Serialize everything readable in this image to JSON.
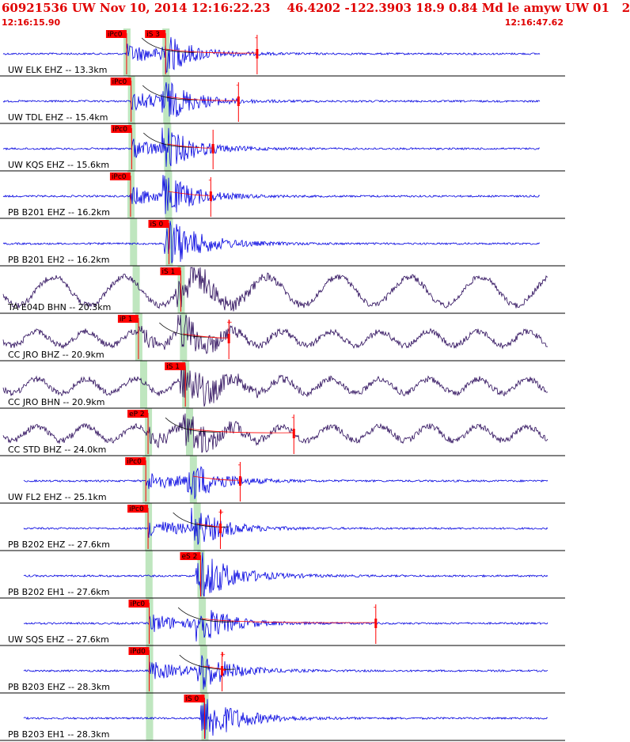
{
  "header": {
    "title": "60921536 UW Nov 10, 2014 12:16:22.23    46.4202 -122.3903 18.9 0.84 Md le amyw UW 01   2",
    "start_time": "12:16:15.90",
    "end_time": "12:16:47.62"
  },
  "colors": {
    "header_red": "#e00000",
    "trace_blue": "#0000e0",
    "trace_dark": "#2a0a5a",
    "pick_red": "#ff0000",
    "bar_green": "#bfe6bf"
  },
  "traces": [
    {
      "label": "UW ELK EHZ -- 13.3km",
      "color": "blue",
      "picks": [
        {
          "text": "iPc0",
          "t": 0.224
        },
        {
          "text": "iS 3",
          "t": 0.293
        }
      ],
      "amp_t": 0.455,
      "amp_sign": "-",
      "env": true,
      "tail": true,
      "noise": false
    },
    {
      "label": "UW TDL EHZ -- 15.4km",
      "color": "blue",
      "picks": [
        {
          "text": "iPc0",
          "t": 0.232
        }
      ],
      "amp_t": 0.422,
      "amp_sign": "-",
      "env": true,
      "tail": true,
      "noise": false
    },
    {
      "label": "UW KQS EHZ -- 15.6km",
      "color": "blue",
      "picks": [
        {
          "text": "iPc0",
          "t": 0.233
        }
      ],
      "amp_t": 0.377,
      "amp_sign": "",
      "env": true,
      "tail": true,
      "noise": false
    },
    {
      "label": "PB B201 EHZ -- 16.2km",
      "color": "blue",
      "picks": [
        {
          "text": "iPc0",
          "t": 0.231
        }
      ],
      "amp_t": 0.373,
      "amp_sign": "-",
      "env": false,
      "tail": true,
      "noise": false
    },
    {
      "label": "PB B201 EH2 -- 16.2km",
      "color": "blue",
      "picks": [
        {
          "text": "iS 0",
          "t": 0.299
        }
      ],
      "amp_t": null,
      "amp_sign": "",
      "env": false,
      "tail": false,
      "noise": false
    },
    {
      "label": "TA E04D BHN -- 20.3km",
      "color": "dark",
      "picks": [
        {
          "text": "iS 1",
          "t": 0.32
        }
      ],
      "amp_t": null,
      "amp_sign": "",
      "env": false,
      "tail": false,
      "noise": true
    },
    {
      "label": "CC JRO BHZ -- 20.9km",
      "color": "dark",
      "picks": [
        {
          "text": "iP 1",
          "t": 0.245
        }
      ],
      "amp_t": 0.405,
      "amp_sign": "+",
      "env": true,
      "tail": true,
      "noise": true
    },
    {
      "label": "CC JRO BHN -- 20.9km",
      "color": "dark",
      "picks": [
        {
          "text": "iS 1",
          "t": 0.328
        }
      ],
      "amp_t": null,
      "amp_sign": "",
      "env": false,
      "tail": false,
      "noise": true
    },
    {
      "label": "CC STD BHZ -- 24.0km",
      "color": "dark",
      "picks": [
        {
          "text": "eP 2",
          "t": 0.262
        }
      ],
      "amp_t": 0.52,
      "amp_sign": "-",
      "env": true,
      "tail": true,
      "noise": true
    },
    {
      "label": "UW FL2 EHZ -- 25.1km",
      "color": "blue",
      "picks": [
        {
          "text": "iPc0",
          "t": 0.258
        }
      ],
      "amp_t": 0.425,
      "amp_sign": "-",
      "env": false,
      "tail": true,
      "noise": false
    },
    {
      "label": "PB B202 EHZ -- 27.6km",
      "color": "blue",
      "picks": [
        {
          "text": "iPc0",
          "t": 0.262
        }
      ],
      "amp_t": 0.39,
      "amp_sign": "+",
      "env": true,
      "tail": true,
      "noise": false
    },
    {
      "label": "PB B202 EH1 -- 27.6km",
      "color": "blue",
      "picks": [
        {
          "text": "eS 2",
          "t": 0.355
        }
      ],
      "amp_t": null,
      "amp_sign": "",
      "env": false,
      "tail": false,
      "noise": false
    },
    {
      "label": "UW SQS EHZ -- 27.6km",
      "color": "blue",
      "picks": [
        {
          "text": "iPc0",
          "t": 0.264
        }
      ],
      "amp_t": 0.665,
      "amp_sign": "-",
      "env": true,
      "tail": true,
      "noise": false
    },
    {
      "label": "PB B203 EHZ -- 28.3km",
      "color": "blue",
      "picks": [
        {
          "text": "iPd0",
          "t": 0.264
        }
      ],
      "amp_t": 0.393,
      "amp_sign": "+",
      "env": true,
      "tail": true,
      "noise": false
    },
    {
      "label": "PB B203 EH1 -- 28.3km",
      "color": "blue",
      "picks": [
        {
          "text": "iS 0",
          "t": 0.362
        }
      ],
      "amp_t": null,
      "amp_sign": "",
      "env": false,
      "tail": false,
      "noise": false
    }
  ]
}
